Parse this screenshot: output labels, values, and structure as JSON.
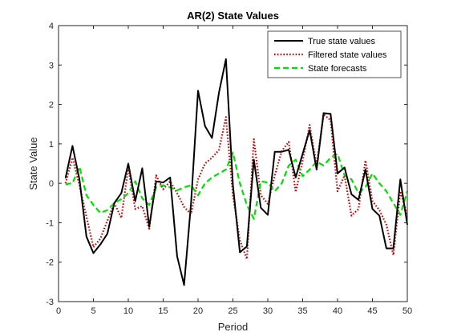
{
  "chart_data": {
    "type": "line",
    "title": "AR(2) State Values",
    "xlabel": "Period",
    "ylabel": "State Value",
    "xlim": [
      0,
      50
    ],
    "ylim": [
      -3,
      4
    ],
    "xticks": [
      "0",
      "5",
      "10",
      "15",
      "20",
      "25",
      "30",
      "35",
      "40",
      "45",
      "50"
    ],
    "yticks": [
      "-3",
      "-2",
      "-1",
      "0",
      "1",
      "2",
      "3",
      "4"
    ],
    "grid": false,
    "legend_position": "top-right",
    "x": [
      1,
      2,
      3,
      4,
      5,
      6,
      7,
      8,
      9,
      10,
      11,
      12,
      13,
      14,
      15,
      16,
      17,
      18,
      19,
      20,
      21,
      22,
      23,
      24,
      25,
      26,
      27,
      28,
      29,
      30,
      31,
      32,
      33,
      34,
      35,
      36,
      37,
      38,
      39,
      40,
      41,
      42,
      43,
      44,
      45,
      46,
      47,
      48,
      49,
      50
    ],
    "series": [
      {
        "name": "True state values",
        "color": "#000000",
        "style": "solid",
        "values": [
          0.13,
          0.95,
          0.1,
          -1.35,
          -1.77,
          -1.55,
          -1.28,
          -0.5,
          -0.25,
          0.5,
          -0.45,
          0.38,
          -1.1,
          0.05,
          0.02,
          0.15,
          -1.85,
          -2.58,
          -0.5,
          2.35,
          1.45,
          1.15,
          2.3,
          3.15,
          -0.05,
          -1.75,
          -1.6,
          0.6,
          -0.62,
          -0.8,
          0.8,
          0.8,
          0.85,
          0.15,
          0.75,
          1.35,
          0.35,
          1.78,
          1.76,
          0.25,
          0.4,
          -0.28,
          -0.42,
          0.35,
          -0.65,
          -0.82,
          -1.65,
          -1.65,
          0.1,
          -1.05
        ]
      },
      {
        "name": "Filtered state values",
        "color": "#cc0000",
        "style": "dotted",
        "values": [
          0.0,
          0.65,
          -0.05,
          -0.85,
          -1.62,
          -1.4,
          -0.95,
          -0.5,
          -0.88,
          0.4,
          -0.65,
          -0.58,
          -1.15,
          0.2,
          -0.15,
          0.05,
          -0.25,
          -0.6,
          -0.78,
          0.1,
          0.5,
          0.65,
          0.85,
          1.68,
          -0.3,
          -1.45,
          -1.92,
          1.12,
          -0.3,
          -0.52,
          0.2,
          0.82,
          1.05,
          -0.22,
          0.58,
          1.48,
          0.45,
          1.75,
          1.6,
          -0.2,
          0.2,
          -0.82,
          -0.65,
          0.58,
          -0.45,
          -0.68,
          -1.05,
          -1.82,
          -0.2,
          -0.82
        ]
      },
      {
        "name": "State forecasts",
        "color": "#00e000",
        "style": "dashed",
        "values": [
          -0.02,
          0.0,
          0.42,
          -0.3,
          -0.55,
          -0.75,
          -0.68,
          -0.5,
          -0.4,
          -0.25,
          0.05,
          -0.38,
          -0.55,
          -0.1,
          -0.05,
          -0.1,
          -0.18,
          -0.1,
          -0.05,
          -0.3,
          0.0,
          0.15,
          0.25,
          0.35,
          0.78,
          0.0,
          -0.55,
          -0.9,
          0.05,
          0.02,
          -0.2,
          0.0,
          0.45,
          0.6,
          0.18,
          0.35,
          0.55,
          0.45,
          0.65,
          0.75,
          0.2,
          0.1,
          -0.25,
          -0.1,
          0.25,
          0.0,
          -0.2,
          -0.5,
          -0.8,
          -0.2
        ]
      }
    ]
  }
}
